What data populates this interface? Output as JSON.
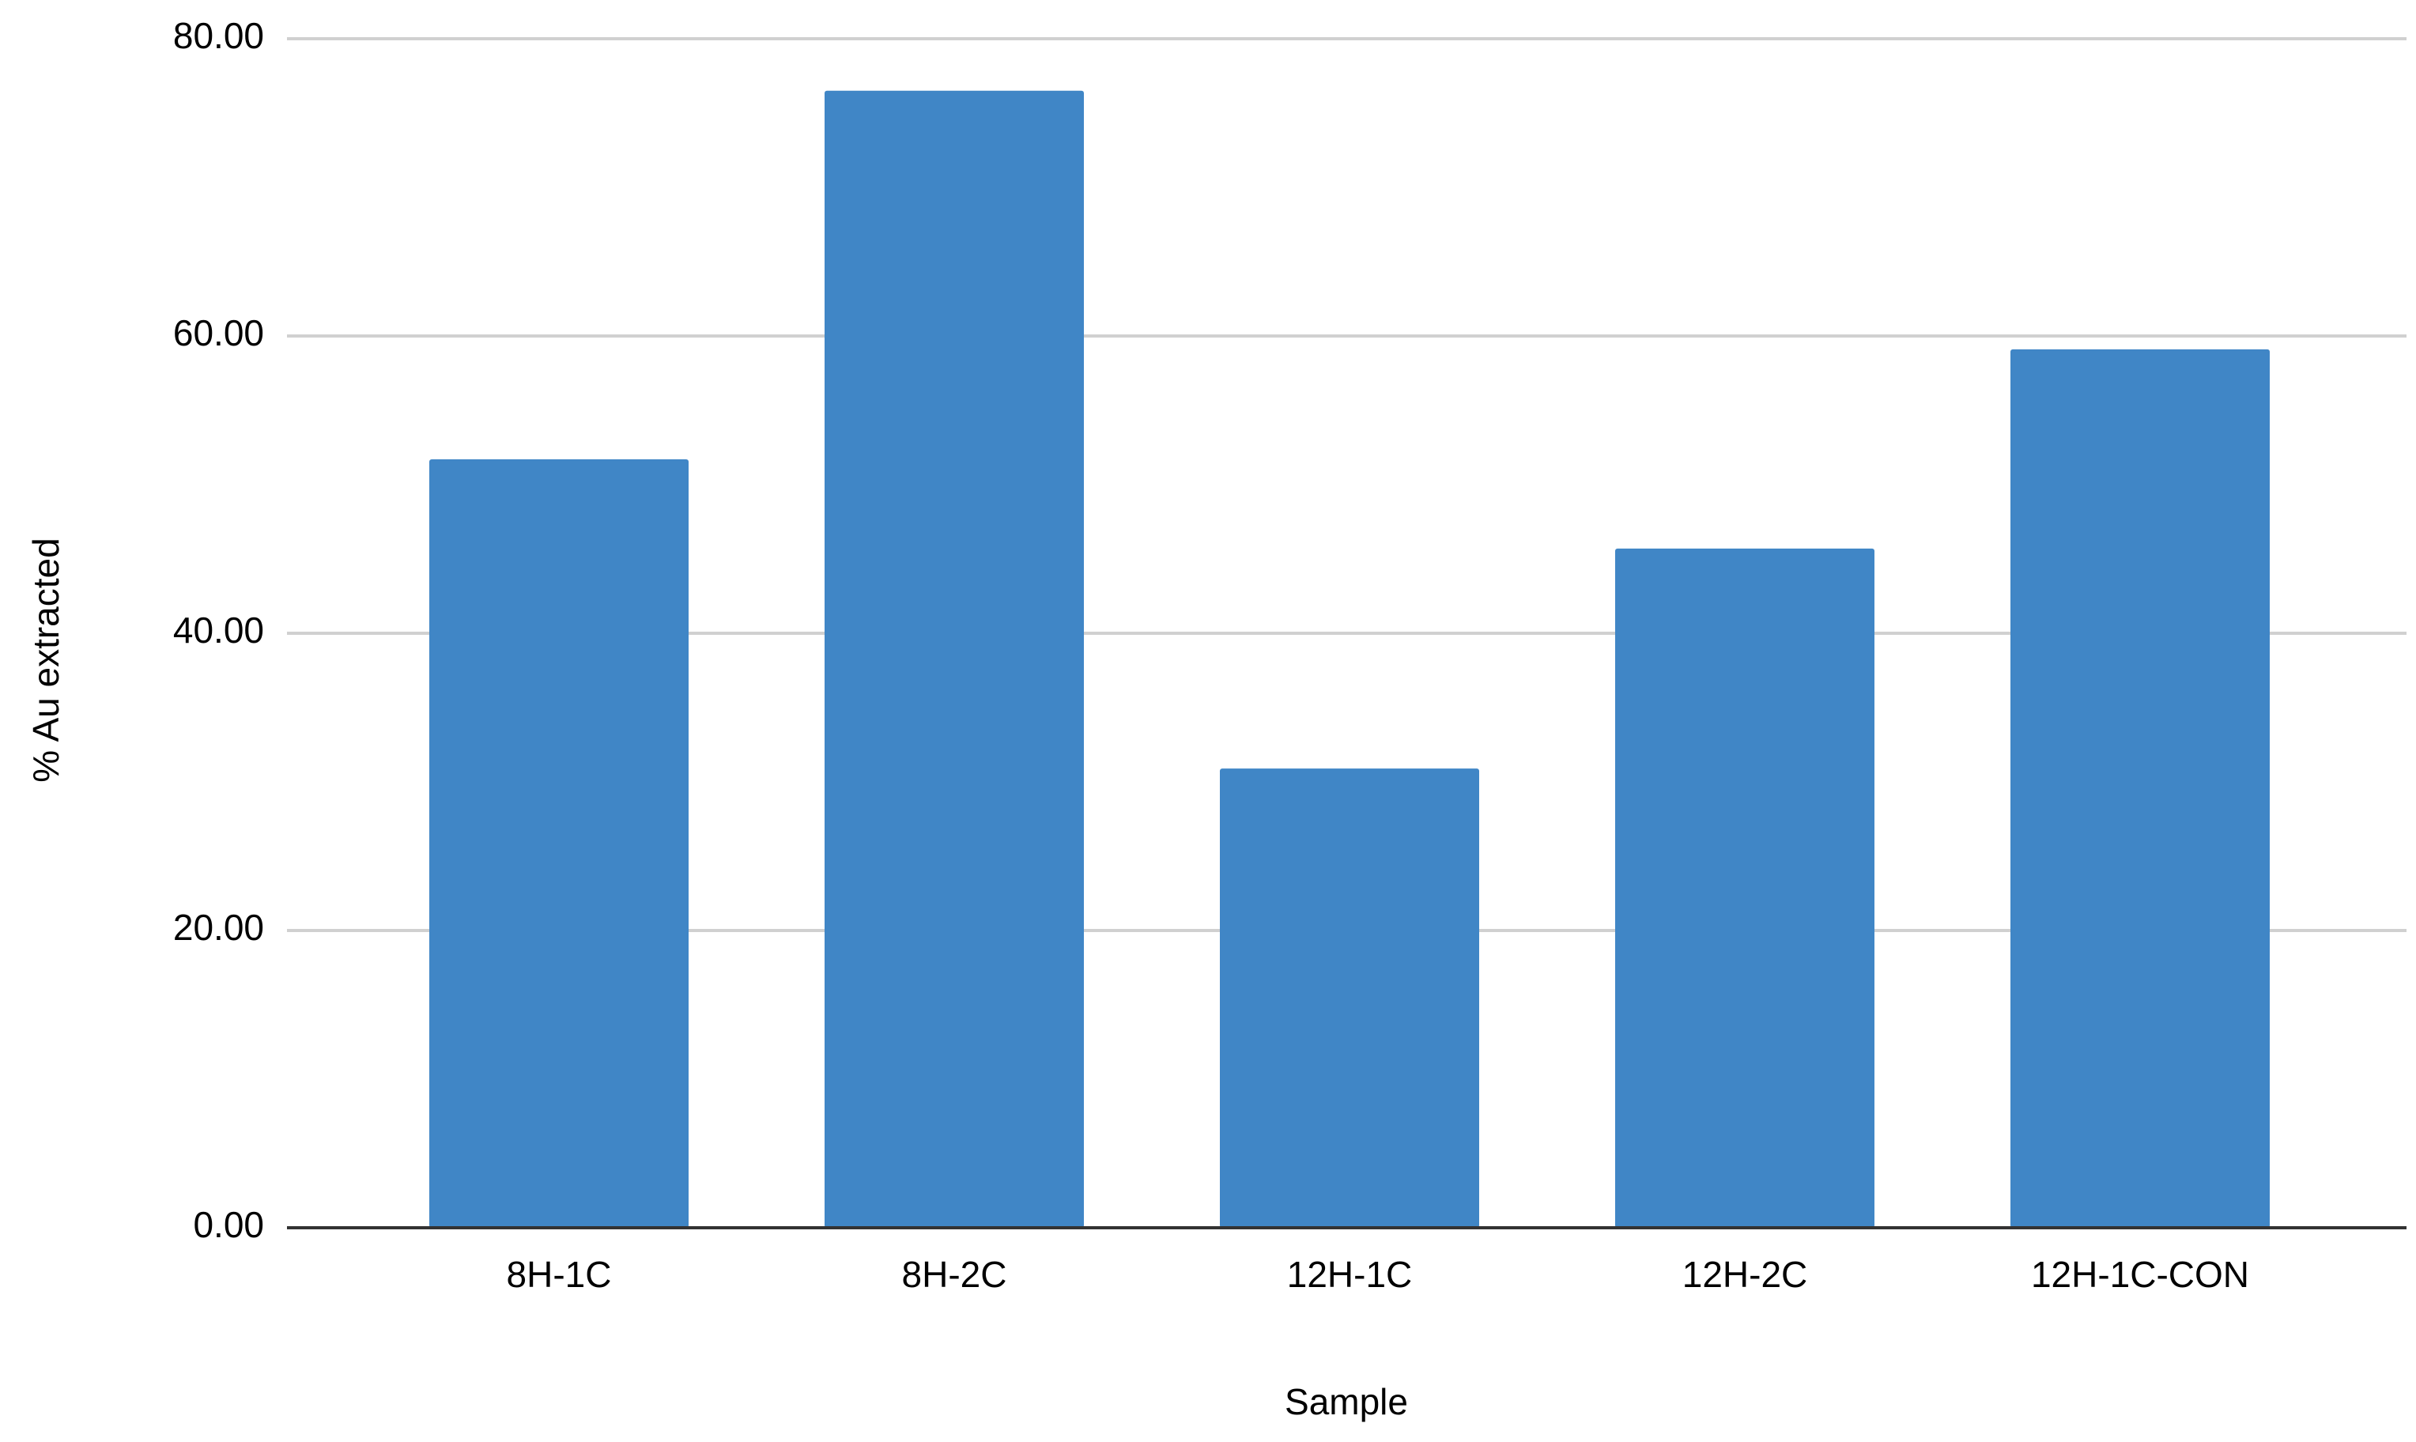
{
  "chart_data": {
    "type": "bar",
    "x_label": "Sample",
    "y_label": "% Au extracted",
    "categories": [
      "8H-1C",
      "8H-2C",
      "12H-1C",
      "12H-2C",
      "12H-1C-CON"
    ],
    "values": [
      51.7,
      76.5,
      30.9,
      45.7,
      59.1
    ],
    "color": "#4086c6",
    "ylim": [
      0,
      80
    ],
    "yticks": [
      {
        "value": 0,
        "label": "0.00"
      },
      {
        "value": 20,
        "label": "20.00"
      },
      {
        "value": 40,
        "label": "40.00"
      },
      {
        "value": 60,
        "label": "60.00"
      },
      {
        "value": 80,
        "label": "80.00"
      }
    ],
    "grid": true
  }
}
